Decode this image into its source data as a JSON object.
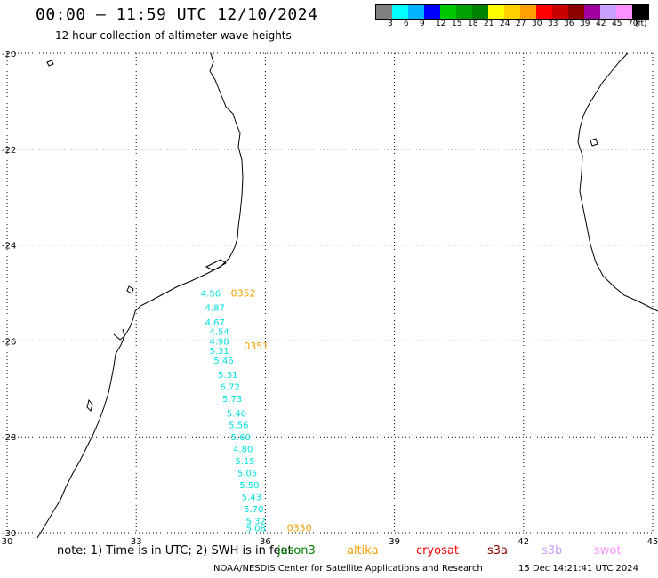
{
  "header": {
    "title": "00:00 – 11:59 UTC 12/10/2024",
    "subtitle": "12 hour collection of altimeter wave heights"
  },
  "legend": {
    "colors": [
      "#808080",
      "#00ffff",
      "#00b4ff",
      "#0000ff",
      "#00c800",
      "#00a000",
      "#008000",
      "#ffff00",
      "#ffd000",
      "#ffa000",
      "#ff0000",
      "#c80000",
      "#8c0000",
      "#a000a0",
      "#c8a0ff",
      "#ff90ff",
      "#000000"
    ],
    "labels": [
      "3",
      "6",
      "9",
      "12",
      "15",
      "18",
      "21",
      "24",
      "27",
      "30",
      "33",
      "36",
      "39",
      "42",
      "45",
      "70",
      "(ft)"
    ]
  },
  "axes": {
    "lat_labels": [
      "-20",
      "-22",
      "-24",
      "-26",
      "-28",
      "-30"
    ],
    "lon_labels": [
      "30",
      "33",
      "36",
      "39",
      "42",
      "45"
    ]
  },
  "map_data": {
    "pass_labels": [
      {
        "text": "0352",
        "lon": 35.2,
        "lat": -25.0
      },
      {
        "text": "0351",
        "lon": 35.5,
        "lat": -26.1
      },
      {
        "text": "0350",
        "lon": 36.5,
        "lat": -29.9
      }
    ],
    "wave_heights": [
      {
        "text": "4.56",
        "lon": 34.5,
        "lat": -25.0
      },
      {
        "text": "4.87",
        "lon": 34.6,
        "lat": -25.3
      },
      {
        "text": "4.67",
        "lon": 34.6,
        "lat": -25.6
      },
      {
        "text": "4.54",
        "lon": 34.7,
        "lat": -25.8
      },
      {
        "text": "4.98",
        "lon": 34.7,
        "lat": -26.0
      },
      {
        "text": "5.31",
        "lon": 34.7,
        "lat": -26.2
      },
      {
        "text": "5.46",
        "lon": 34.8,
        "lat": -26.4
      },
      {
        "text": "5.31",
        "lon": 34.9,
        "lat": -26.7
      },
      {
        "text": "6.72",
        "lon": 34.95,
        "lat": -26.95
      },
      {
        "text": "5.73",
        "lon": 35.0,
        "lat": -27.2
      },
      {
        "text": "5.40",
        "lon": 35.1,
        "lat": -27.5
      },
      {
        "text": "5.56",
        "lon": 35.15,
        "lat": -27.75
      },
      {
        "text": "5.60",
        "lon": 35.2,
        "lat": -28.0
      },
      {
        "text": "4.80",
        "lon": 35.25,
        "lat": -28.25
      },
      {
        "text": "5.15",
        "lon": 35.3,
        "lat": -28.5
      },
      {
        "text": "5.05",
        "lon": 35.35,
        "lat": -28.75
      },
      {
        "text": "5.50",
        "lon": 35.4,
        "lat": -29.0
      },
      {
        "text": "5.43",
        "lon": 35.45,
        "lat": -29.25
      },
      {
        "text": "5.70",
        "lon": 35.5,
        "lat": -29.5
      },
      {
        "text": "5.32",
        "lon": 35.55,
        "lat": -29.75
      },
      {
        "text": "5.08",
        "lon": 35.55,
        "lat": -29.9
      }
    ]
  },
  "footer": {
    "note": "note: 1) Time is in UTC; 2) SWH is in feet",
    "satellites": [
      {
        "name": "jason3",
        "color": "#008000"
      },
      {
        "name": "altika",
        "color": "#f0a000"
      },
      {
        "name": "cryosat",
        "color": "#ff0000"
      },
      {
        "name": "s3a",
        "color": "#8c0000"
      },
      {
        "name": "s3b",
        "color": "#c8a0ff"
      },
      {
        "name": "swot",
        "color": "#ff90ff"
      }
    ],
    "credit": "NOAA/NESDIS Center for Satellite Applications and Research",
    "timestamp": "15 Dec 14:21:41 UTC 2024"
  }
}
